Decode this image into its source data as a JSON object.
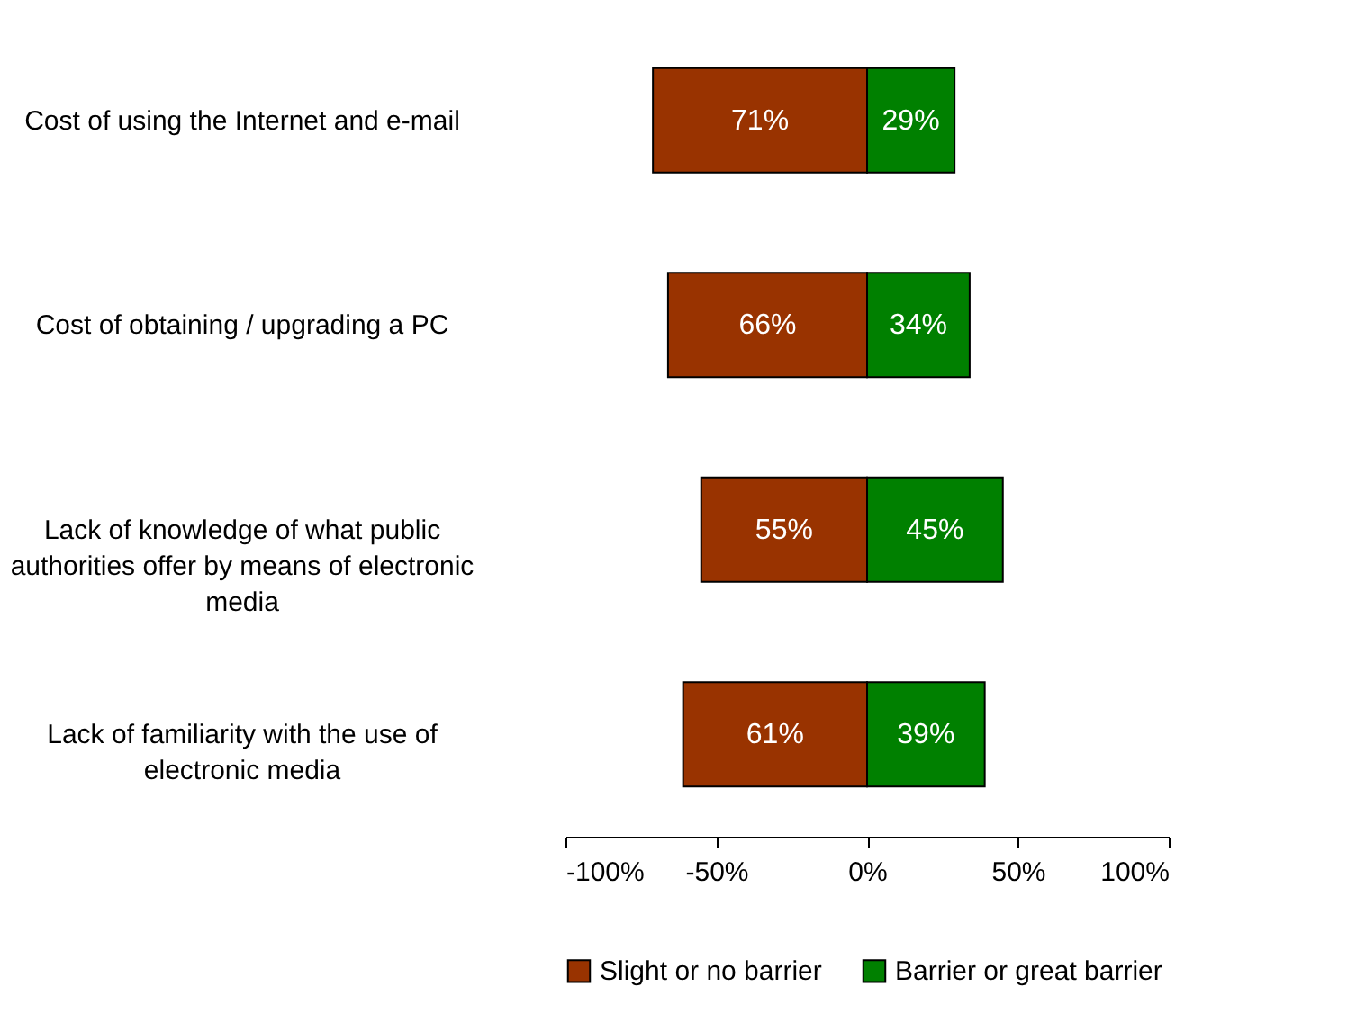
{
  "chart_data": {
    "type": "bar",
    "orientation": "horizontal",
    "categories": [
      "Cost of using the Internet and e-mail",
      "Cost of obtaining / upgrading a PC",
      "Lack of knowledge of what public authorities offer by means of electronic media",
      "Lack of familiarity with the use of electronic media"
    ],
    "series": [
      {
        "name": "Slight or no barrier",
        "color": "#993300",
        "values": [
          71,
          66,
          55,
          61
        ],
        "base": [
          -71,
          -66,
          -55,
          -61
        ],
        "value_labels": [
          "71%",
          "66%",
          "55%",
          "61%"
        ]
      },
      {
        "name": "Barrier or great barrier",
        "color": "#008000",
        "values": [
          29,
          34,
          45,
          39
        ],
        "value_labels": [
          "29%",
          "34%",
          "45%",
          "39%"
        ]
      }
    ],
    "xlim": [
      -100,
      100
    ],
    "xticks": [
      {
        "value": -100,
        "label": "-100%"
      },
      {
        "value": -50,
        "label": "-50%"
      },
      {
        "value": 0,
        "label": "0%"
      },
      {
        "value": 50,
        "label": "50%"
      },
      {
        "value": 100,
        "label": "100%"
      }
    ],
    "grid": false,
    "legend": "bottom"
  }
}
